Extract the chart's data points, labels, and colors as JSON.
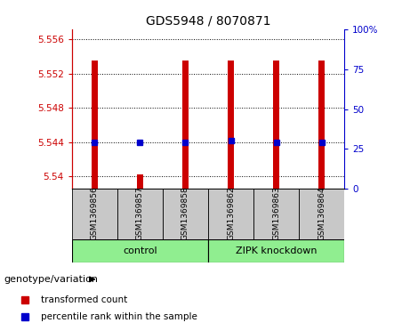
{
  "title": "GDS5948 / 8070871",
  "samples": [
    "GSM1369856",
    "GSM1369857",
    "GSM1369858",
    "GSM1369862",
    "GSM1369863",
    "GSM1369864"
  ],
  "red_values": [
    5.5535,
    5.5402,
    5.5535,
    5.5535,
    5.5535,
    5.5535
  ],
  "blue_values": [
    5.544,
    5.544,
    5.544,
    5.5442,
    5.544,
    5.544
  ],
  "ymin": 5.5385,
  "ymax": 5.5572,
  "yticks_left": [
    5.54,
    5.544,
    5.548,
    5.552,
    5.556
  ],
  "yticks_right_pcts": [
    0,
    25,
    50,
    75,
    100
  ],
  "yticks_right_labels": [
    "0",
    "25",
    "50",
    "75",
    "100%"
  ],
  "bar_color": "#CC0000",
  "dot_color": "#0000CC",
  "sample_bg": "#C8C8C8",
  "group_bg": "#90EE90",
  "left_axis_color": "#CC0000",
  "right_axis_color": "#0000CC",
  "control_label": "control",
  "zipk_label": "ZIPK knockdown",
  "genotype_label": "genotype/variation",
  "legend_red": "transformed count",
  "legend_blue": "percentile rank within the sample"
}
